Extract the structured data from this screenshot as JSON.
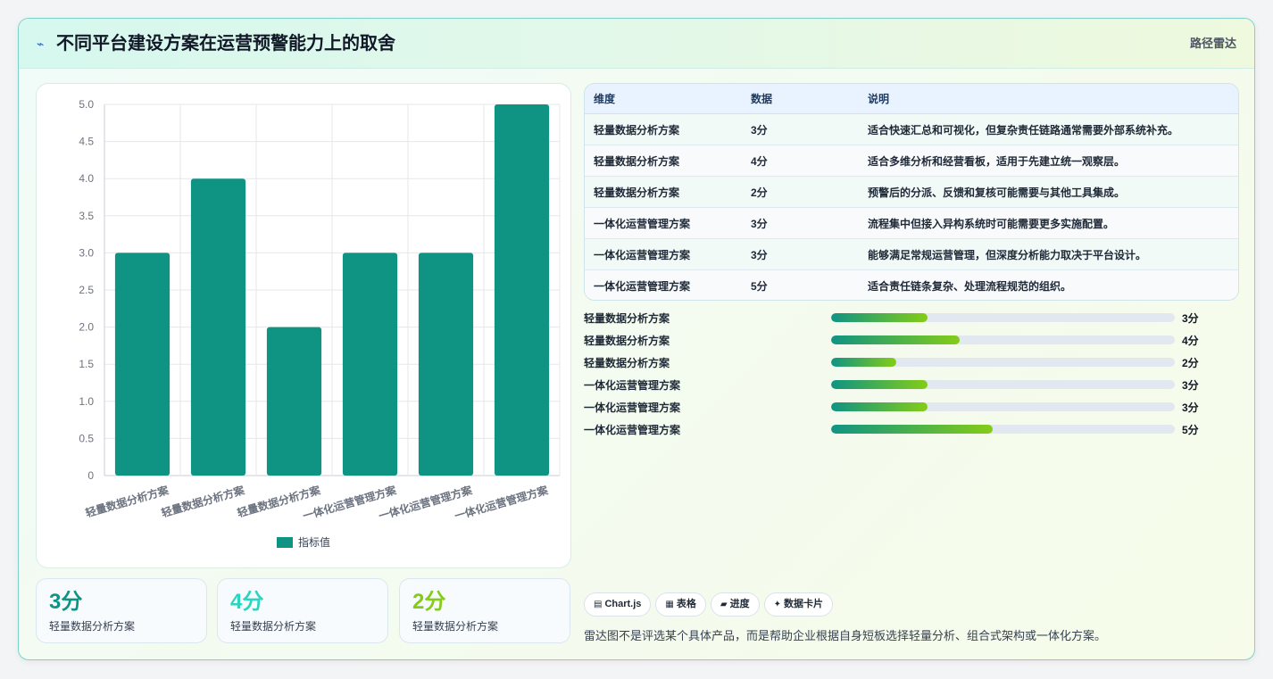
{
  "header": {
    "logo_icon": "lightning-icon",
    "title": "不同平台建设方案在运营预警能力上的取舍",
    "tag": "路径雷达"
  },
  "chart_data": {
    "type": "bar",
    "categories": [
      "轻量数据分析方案",
      "轻量数据分析方案",
      "轻量数据分析方案",
      "一体化运营管理方案",
      "一体化运营管理方案",
      "一体化运营管理方案"
    ],
    "series": [
      {
        "name": "指标值",
        "values": [
          3,
          4,
          2,
          3,
          3,
          5
        ],
        "color": "#0f9484"
      }
    ],
    "yticks": [
      "0",
      "0.5",
      "1.0",
      "1.5",
      "2.0",
      "2.5",
      "3.0",
      "3.5",
      "4.0",
      "4.5",
      "5.0"
    ],
    "ylim": [
      0,
      5
    ],
    "grid": true,
    "legend": "bottom"
  },
  "stats": [
    {
      "value": "3分",
      "label": "轻量数据分析方案",
      "color": "#0f9484"
    },
    {
      "value": "4分",
      "label": "轻量数据分析方案",
      "color": "#2dd4bf"
    },
    {
      "value": "2分",
      "label": "轻量数据分析方案",
      "color": "#84cc16"
    }
  ],
  "table": {
    "headers": [
      "维度",
      "数据",
      "说明"
    ],
    "rows": [
      [
        "轻量数据分析方案",
        "3分",
        "适合快速汇总和可视化，但复杂责任链路通常需要外部系统补充。"
      ],
      [
        "轻量数据分析方案",
        "4分",
        "适合多维分析和经营看板，适用于先建立统一观察层。"
      ],
      [
        "轻量数据分析方案",
        "2分",
        "预警后的分派、反馈和复核可能需要与其他工具集成。"
      ],
      [
        "一体化运营管理方案",
        "3分",
        "流程集中但接入异构系统时可能需要更多实施配置。"
      ],
      [
        "一体化运营管理方案",
        "3分",
        "能够满足常规运营管理，但深度分析能力取决于平台设计。"
      ],
      [
        "一体化运营管理方案",
        "5分",
        "适合责任链条复杂、处理流程规范的组织。"
      ]
    ]
  },
  "progress": [
    {
      "label": "轻量数据分析方案",
      "value": "3分",
      "fraction": 0.28
    },
    {
      "label": "轻量数据分析方案",
      "value": "4分",
      "fraction": 0.375
    },
    {
      "label": "轻量数据分析方案",
      "value": "2分",
      "fraction": 0.19
    },
    {
      "label": "一体化运营管理方案",
      "value": "3分",
      "fraction": 0.28
    },
    {
      "label": "一体化运营管理方案",
      "value": "3分",
      "fraction": 0.28
    },
    {
      "label": "一体化运营管理方案",
      "value": "5分",
      "fraction": 0.47
    }
  ],
  "chips": [
    {
      "icon": "chart-icon",
      "glyph": "▤",
      "label": "Chart.js"
    },
    {
      "icon": "table-icon",
      "glyph": "▦",
      "label": "表格"
    },
    {
      "icon": "progress-icon",
      "glyph": "▰",
      "label": "进度"
    },
    {
      "icon": "sparkle-icon",
      "glyph": "✦",
      "label": "数据卡片"
    }
  ],
  "note": "雷达图不是评选某个具体产品，而是帮助企业根据自身短板选择轻量分析、组合式架构或一体化方案。"
}
